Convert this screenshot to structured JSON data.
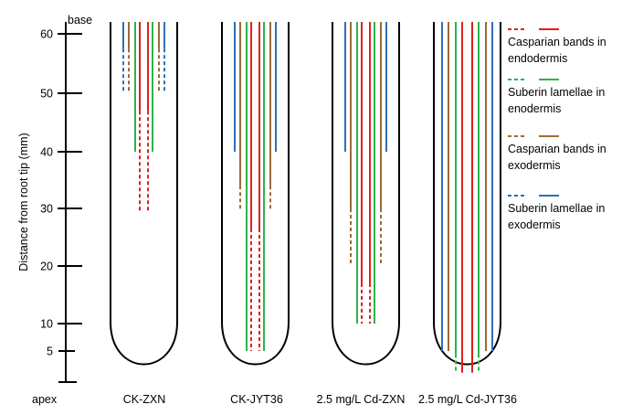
{
  "axis": {
    "title": "Distance from root tip (mm)",
    "top_label": "base",
    "bottom_label": "apex",
    "ticks": [
      {
        "value": 60,
        "label": "60"
      },
      {
        "value": 50,
        "label": "50"
      },
      {
        "value": 40,
        "label": "40"
      },
      {
        "value": 30,
        "label": "30"
      },
      {
        "value": 20,
        "label": "20"
      },
      {
        "value": 10,
        "label": "10"
      },
      {
        "value": 5,
        "label": "5"
      }
    ]
  },
  "colors": {
    "casparian_endodermis": "#e02020",
    "suberin_endodermis": "#2db34a",
    "casparian_exodermis": "#9a6a3c",
    "suberin_exodermis": "#2f6fb8",
    "outline": "#000000"
  },
  "legend": [
    {
      "line1": "Casparian bands in",
      "line2": "endodermis",
      "color_key": "casparian_endodermis"
    },
    {
      "line1": "Suberin lamellae in",
      "line2": "enodermis",
      "color_key": "suberin_endodermis"
    },
    {
      "line1": "Casparian bands in",
      "line2": "exodermis",
      "color_key": "casparian_exodermis"
    },
    {
      "line1": "Suberin lamellae in",
      "line2": "exodermis",
      "color_key": "suberin_exodermis"
    }
  ],
  "roots": [
    {
      "label": "CK-ZXN",
      "suberin_exo": {
        "solid": 57.5,
        "dashed": 50
      },
      "casparian_exo": {
        "solid": 57.5,
        "dashed": 50
      },
      "suberin_endo": {
        "solid": 40
      },
      "casparian_endo": {
        "solid": 47,
        "dashed": 29.5
      }
    },
    {
      "label": "CK-JYT36",
      "suberin_exo": {
        "solid": 40
      },
      "casparian_exo": {
        "solid": 34,
        "dashed": 29.5
      },
      "suberin_endo": {
        "solid": 5
      },
      "casparian_endo": {
        "solid": 26.5,
        "dashed": 5
      }
    },
    {
      "label": "2.5 mg/L Cd-ZXN",
      "suberin_exo": {
        "solid": 40
      },
      "casparian_exo": {
        "solid": 30,
        "dashed": 20
      },
      "suberin_endo": {
        "solid": 10
      },
      "casparian_endo": {
        "solid": 17,
        "dashed": 10
      }
    },
    {
      "label": "2.5 mg/L Cd-JYT36",
      "suberin_exo": {
        "solid": 5
      },
      "casparian_exo": {
        "solid": 5
      },
      "suberin_endo": {
        "solid": 4.5,
        "dashed": 1.5
      },
      "casparian_endo": {
        "solid": 1.5
      }
    }
  ]
}
